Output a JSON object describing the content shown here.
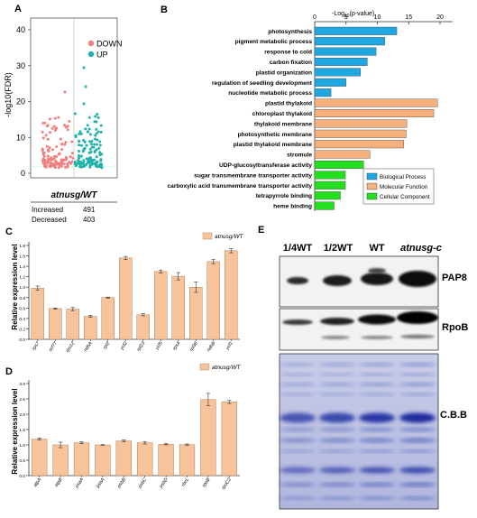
{
  "panels": {
    "A": {
      "letter": "A",
      "ylabel": "-log10(FDR)",
      "yticks": [
        0,
        10,
        20,
        30,
        40
      ],
      "legend": [
        {
          "label": "DOWN",
          "color": "#f08080"
        },
        {
          "label": "UP",
          "color": "#20b2aa"
        }
      ],
      "comparison": "atnusg/WT",
      "table": [
        {
          "label": "Increased",
          "value": "491"
        },
        {
          "label": "Decreased",
          "value": "403"
        }
      ]
    },
    "B": {
      "letter": "B",
      "xlabel_main": "-Log",
      "xlabel_sub": "10",
      "xlabel_tail": "(p-value)",
      "legend": [
        {
          "label": "Biological Process",
          "color": "#1ea7e0"
        },
        {
          "label": "Molecular Function",
          "color": "#f6b07c"
        },
        {
          "label": "Cellular Component",
          "color": "#22e01e"
        }
      ]
    },
    "C": {
      "letter": "C",
      "ylabel": "Relative expression level",
      "legend": "atnusg/WT"
    },
    "D": {
      "letter": "D",
      "ylabel": "Relative expression level",
      "legend": "atnusg/WT"
    },
    "E": {
      "letter": "E",
      "lanes": [
        "1/4WT",
        "1/2WT",
        "WT",
        "atnusg-c"
      ],
      "blots": [
        "PAP8",
        "RpoB",
        "C.B.B"
      ]
    }
  },
  "chart_data": [
    {
      "id": "B",
      "type": "bar",
      "orientation": "horizontal",
      "xticks": [
        0,
        5,
        10,
        15,
        20
      ],
      "xlim": [
        0,
        22
      ],
      "categories": [
        "photosynthesis",
        "pigment metabolic process",
        "response to cold",
        "carbon fixation",
        "plastid organization",
        "regulation of seedling development",
        "nucleotide metabolic process",
        "plastid thylakoid",
        "chloroplast thylakoid",
        "thylakoid membrane",
        "photosynthetic membrane",
        "plastid thylakoid membrane",
        "stromule",
        "UDP-glucosyltransferase activity",
        "sugar transmembrane transporter activity",
        "carboxylic acid transmembrane transporter activity",
        "tetrapyrrole binding",
        "heme binding"
      ],
      "values": [
        13.1,
        11.2,
        9.8,
        8.4,
        7.3,
        5.0,
        2.6,
        19.6,
        19.0,
        14.7,
        14.6,
        14.2,
        8.8,
        7.8,
        4.9,
        4.9,
        4.1,
        3.1
      ],
      "group": [
        "Biological Process",
        "Biological Process",
        "Biological Process",
        "Biological Process",
        "Biological Process",
        "Biological Process",
        "Biological Process",
        "Molecular Function",
        "Molecular Function",
        "Molecular Function",
        "Molecular Function",
        "Molecular Function",
        "Molecular Function",
        "Cellular Component",
        "Cellular Component",
        "Cellular Component",
        "Cellular Component",
        "Cellular Component"
      ]
    },
    {
      "id": "C",
      "type": "bar",
      "yticks": [
        "0.0",
        "0.2",
        "0.4",
        "0.6",
        "0.8",
        "1.0",
        "1.2",
        "1.4",
        "1.6",
        "1.8"
      ],
      "ylim": [
        0,
        1.8
      ],
      "categories": [
        "rps7",
        "orf77",
        "rps12",
        "ndhA",
        "rpl2",
        "ycf2",
        "rpl23",
        "ycf5",
        "rps4",
        "rpl36",
        "ndhB",
        "ycf1"
      ],
      "values": [
        0.98,
        0.59,
        0.58,
        0.44,
        0.8,
        1.56,
        0.47,
        1.3,
        1.21,
        1.0,
        1.49,
        1.7
      ],
      "errors": [
        0.04,
        0.01,
        0.03,
        0.02,
        0.01,
        0.03,
        0.02,
        0.03,
        0.07,
        0.1,
        0.04,
        0.04
      ],
      "color": "#f6c39a"
    },
    {
      "id": "D",
      "type": "bar",
      "yticks": [
        "0.0",
        "0.5",
        "1.0",
        "1.5",
        "2.0",
        "2.5",
        "3.0"
      ],
      "ylim": [
        0,
        3.0
      ],
      "categories": [
        "atpA",
        "atpB",
        "psaA",
        "psbA",
        "psbB",
        "psbC",
        "psbD",
        "rbcL",
        "rpoB",
        "rpoC2"
      ],
      "values": [
        1.19,
        1.0,
        1.07,
        1.0,
        1.13,
        1.07,
        1.02,
        1.01,
        2.48,
        2.4
      ],
      "errors": [
        0.03,
        0.09,
        0.03,
        0.01,
        0.03,
        0.04,
        0.02,
        0.02,
        0.2,
        0.05
      ],
      "color": "#f6c39a"
    }
  ]
}
